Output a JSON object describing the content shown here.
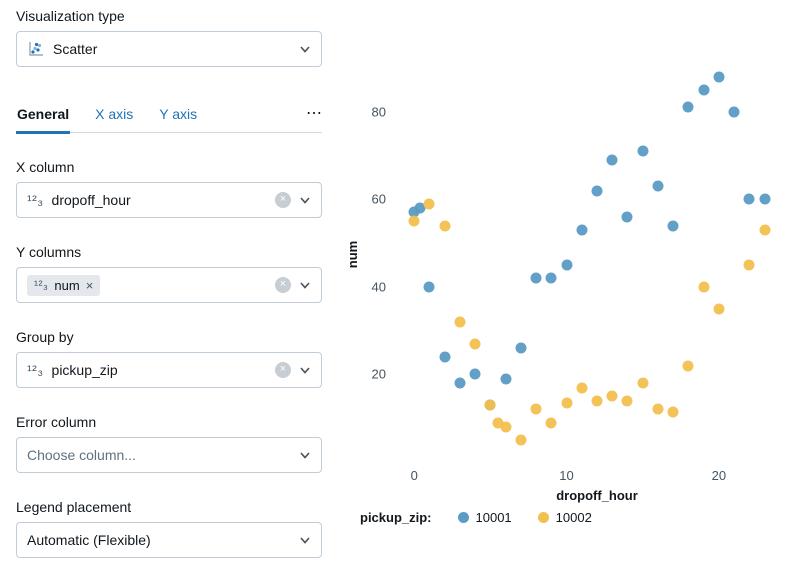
{
  "panel": {
    "viz_type": {
      "label": "Visualization type",
      "value": "Scatter"
    },
    "tabs": [
      {
        "label": "General"
      },
      {
        "label": "X axis"
      },
      {
        "label": "Y axis"
      }
    ],
    "more_tabs": "⋯",
    "fields": {
      "x_column": {
        "label": "X column",
        "value": "dropoff_hour"
      },
      "y_columns": {
        "label": "Y columns",
        "tag": "num"
      },
      "group_by": {
        "label": "Group by",
        "value": "pickup_zip"
      },
      "error_column": {
        "label": "Error column",
        "placeholder": "Choose column..."
      },
      "legend_placement": {
        "label": "Legend placement",
        "value": "Automatic (Flexible)"
      }
    }
  },
  "icons": {
    "number_column": "¹²₃",
    "clear": "×",
    "remove": "×"
  },
  "colors": {
    "accent_blue": "#2272B4",
    "series_10001": "#5B9BC4",
    "series_10002": "#F2C04E"
  },
  "chart_data": {
    "type": "scatter",
    "xlabel": "dropoff_hour",
    "ylabel": "num",
    "legend_title": "pickup_zip:",
    "x_ticks": [
      0,
      10,
      20
    ],
    "y_ticks": [
      20,
      40,
      60,
      80
    ],
    "xlim": [
      -0.8,
      24.8
    ],
    "ylim": [
      0,
      95
    ],
    "grid": false,
    "legend_position": "bottom",
    "series": [
      {
        "name": "10001",
        "color": "#5B9BC4",
        "points": [
          [
            0,
            57
          ],
          [
            0.4,
            58
          ],
          [
            1,
            40
          ],
          [
            2,
            24
          ],
          [
            3,
            18
          ],
          [
            4,
            20
          ],
          [
            5,
            13
          ],
          [
            6,
            19
          ],
          [
            7,
            26
          ],
          [
            8,
            42
          ],
          [
            9,
            42
          ],
          [
            10,
            45
          ],
          [
            11,
            53
          ],
          [
            12,
            62
          ],
          [
            13,
            69
          ],
          [
            14,
            56
          ],
          [
            15,
            71
          ],
          [
            16,
            63
          ],
          [
            17,
            54
          ],
          [
            18,
            81
          ],
          [
            19,
            85
          ],
          [
            20,
            88
          ],
          [
            21,
            80
          ],
          [
            22,
            60
          ],
          [
            23,
            60
          ]
        ]
      },
      {
        "name": "10002",
        "color": "#F2C04E",
        "points": [
          [
            0,
            55
          ],
          [
            1,
            59
          ],
          [
            2,
            54
          ],
          [
            3,
            32
          ],
          [
            4,
            27
          ],
          [
            5,
            13
          ],
          [
            5.5,
            9
          ],
          [
            6,
            8
          ],
          [
            7,
            5
          ],
          [
            8,
            12
          ],
          [
            9,
            9
          ],
          [
            10,
            13.5
          ],
          [
            11,
            17
          ],
          [
            12,
            14
          ],
          [
            13,
            15
          ],
          [
            14,
            14
          ],
          [
            15,
            18
          ],
          [
            16,
            12
          ],
          [
            17,
            11.5
          ],
          [
            18,
            22
          ],
          [
            19,
            40
          ],
          [
            20,
            35
          ],
          [
            22,
            45
          ],
          [
            23,
            53
          ]
        ]
      }
    ]
  }
}
